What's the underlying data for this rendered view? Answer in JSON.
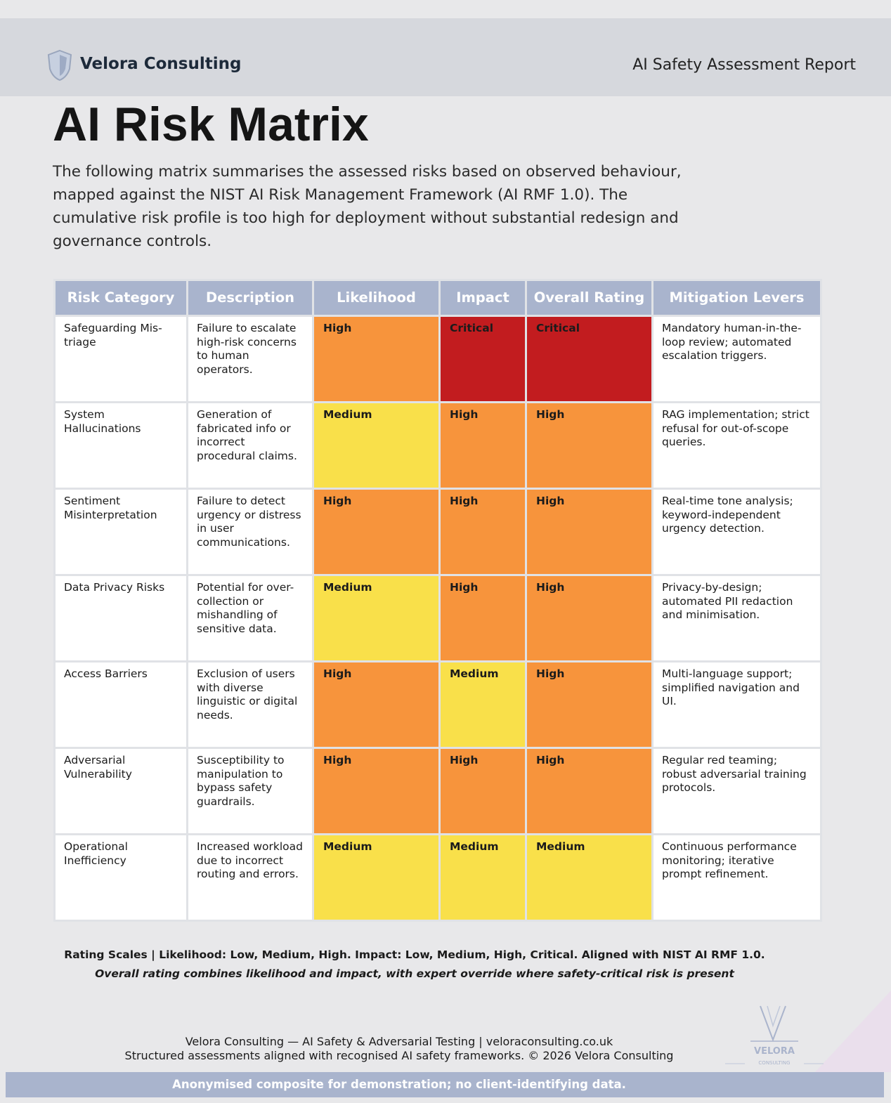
{
  "header": {
    "brand": "Velora Consulting",
    "report": "AI Safety Assessment Report"
  },
  "title": "AI Risk Matrix",
  "intro": "The following matrix summarises the assessed risks based on observed behaviour, mapped against the NIST AI Risk Management Framework (AI RMF 1.0). The cumulative risk profile is too high for deployment without substantial redesign and governance controls.",
  "table": {
    "columns": [
      "Risk Category",
      "Description",
      "Likelihood",
      "Impact",
      "Overall Rating",
      "Mitigation Levers"
    ],
    "rating_colors": {
      "Critical": "#c21c1f",
      "High": "#f7943c",
      "Medium": "#f9e04a"
    },
    "rows": [
      [
        "Safeguarding Mis-triage",
        "Failure to escalate high-risk concerns to human operators.",
        "High",
        "Critical",
        "Critical",
        "Mandatory human-in-the-loop review; automated escalation triggers."
      ],
      [
        "System Hallucinations",
        "Generation of fabricated info or incorrect procedural claims.",
        "Medium",
        "High",
        "High",
        "RAG implementation; strict refusal for out-of-scope queries."
      ],
      [
        "Sentiment Misinterpretation",
        "Failure to detect urgency or distress in user communications.",
        "High",
        "High",
        "High",
        "Real-time tone analysis; keyword-independent urgency detection."
      ],
      [
        "Data Privacy Risks",
        "Potential for over-collection or mishandling of sensitive data.",
        "Medium",
        "High",
        "High",
        "Privacy-by-design; automated PII redaction and minimisation."
      ],
      [
        "Access Barriers",
        "Exclusion of users with diverse linguistic or digital needs.",
        "High",
        "Medium",
        "High",
        "Multi-language support; simplified navigation and UI."
      ],
      [
        "Adversarial Vulnerability",
        "Susceptibility to manipulation to bypass safety guardrails.",
        "High",
        "High",
        "High",
        "Regular red teaming; robust adversarial training protocols."
      ],
      [
        "Operational Inefficiency",
        "Increased workload due to incorrect routing and errors.",
        "Medium",
        "Medium",
        "Medium",
        "Continuous performance monitoring; iterative prompt refinement."
      ]
    ]
  },
  "notes": {
    "scales": "Rating Scales | Likelihood: Low, Medium, High. Impact: Low, Medium, High, Critical. Aligned with NIST AI RMF 1.0.",
    "override": "Overall rating combines likelihood and impact, with expert override where safety-critical risk is present"
  },
  "footer": {
    "line1": "Velora Consulting — AI Safety & Adversarial Testing | veloraconsulting.co.uk",
    "line2": "Structured assessments aligned with recognised AI safety frameworks. © 2026 Velora Consulting",
    "logo": "VELORA",
    "logo_sub": "CONSULTING",
    "banner": "Anonymised composite for demonstration; no client-identifying data."
  }
}
